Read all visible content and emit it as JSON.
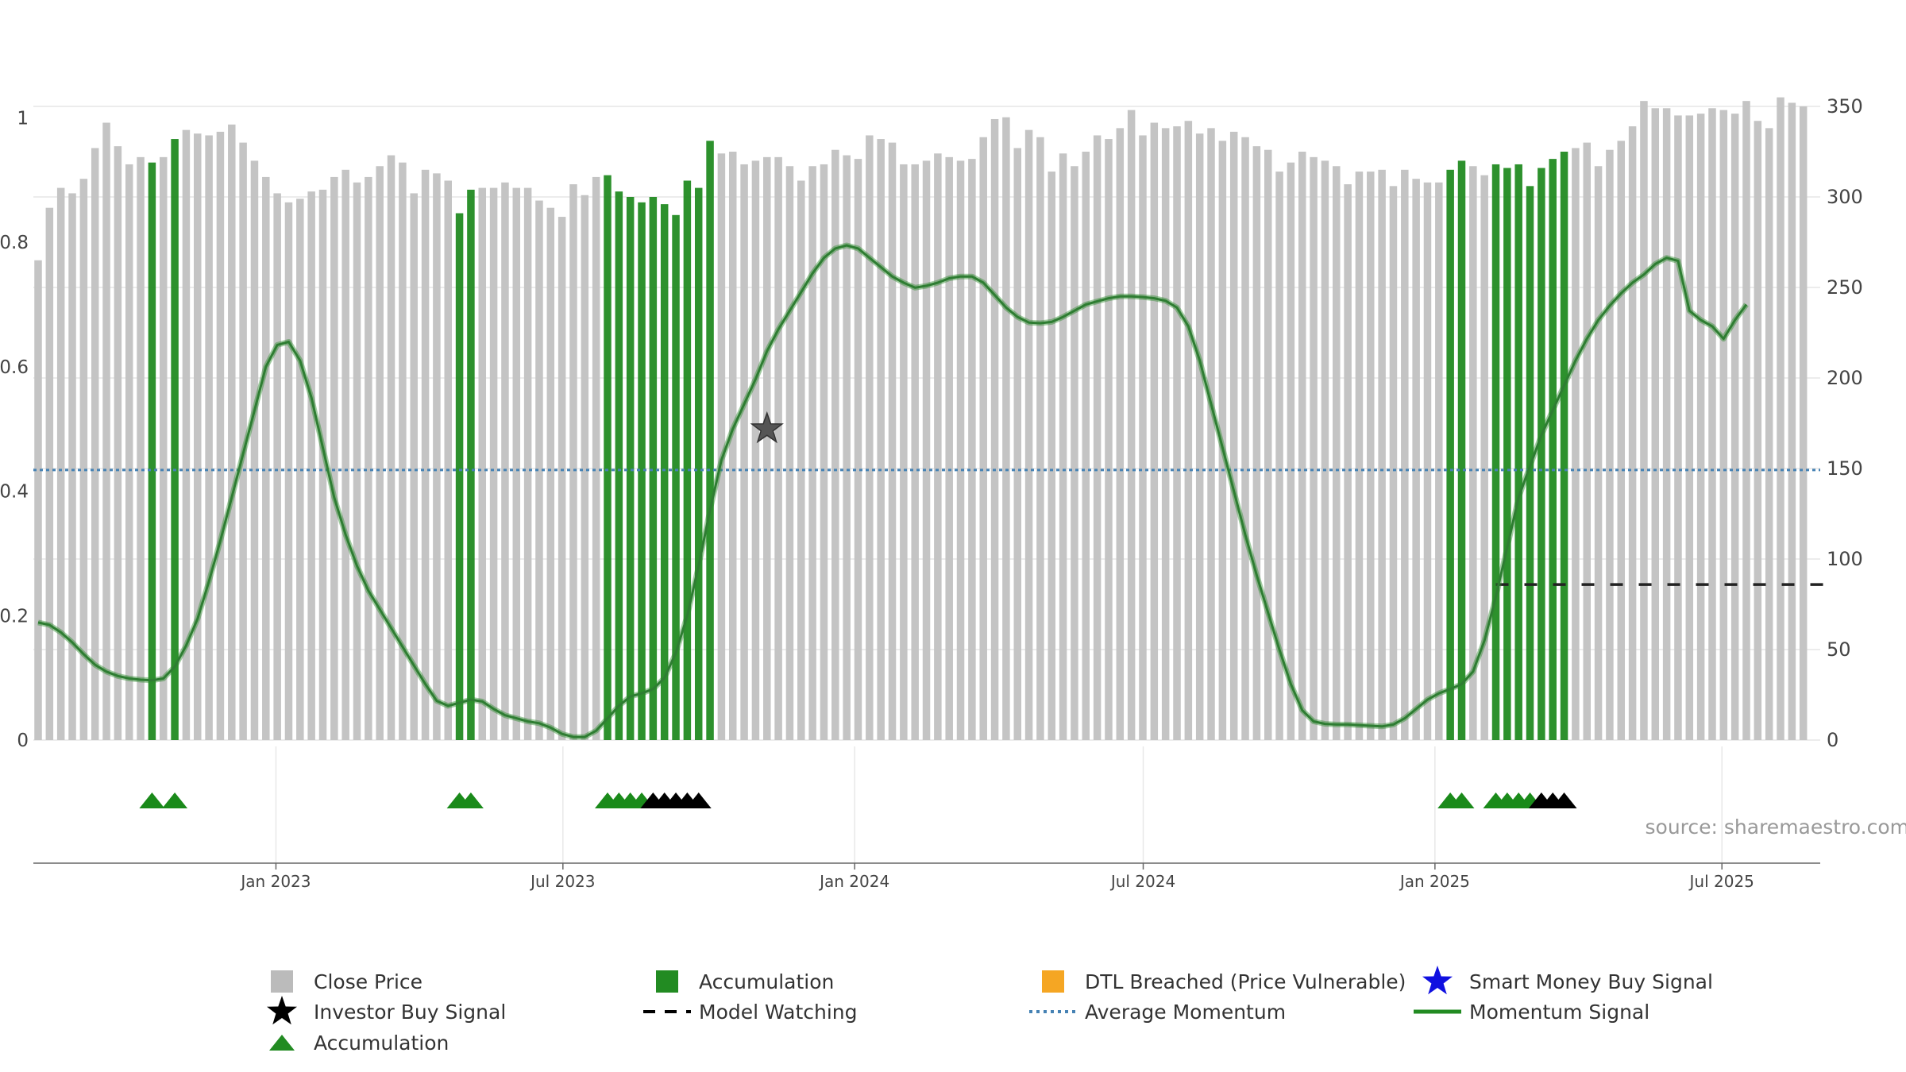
{
  "chart_data": {
    "type": "bar",
    "title": "",
    "source": "source: sharemaestro.com",
    "x_range": [
      "2022-08-01",
      "2025-09-01"
    ],
    "x_ticks": [
      {
        "date": "2023-01-01",
        "label": "Jan 2023"
      },
      {
        "date": "2023-07-01",
        "label": "Jul 2023"
      },
      {
        "date": "2024-01-01",
        "label": "Jan 2024"
      },
      {
        "date": "2024-07-01",
        "label": "Jul 2024"
      },
      {
        "date": "2025-01-01",
        "label": "Jan 2025"
      },
      {
        "date": "2025-07-01",
        "label": "Jul 2025"
      }
    ],
    "left_axis": {
      "ylim": [
        0,
        1.1
      ],
      "ticks": [
        {
          "value": 0,
          "label": "0"
        },
        {
          "value": 0.2,
          "label": "0.2"
        },
        {
          "value": 0.4,
          "label": "0.4"
        },
        {
          "value": 0.6,
          "label": "0.6"
        },
        {
          "value": 0.8,
          "label": "0.8"
        },
        {
          "value": 1.0,
          "label": "1"
        }
      ]
    },
    "right_axis": {
      "ylim": [
        0,
        350
      ],
      "ticks": [
        {
          "value": 0,
          "label": "0"
        },
        {
          "value": 50,
          "label": "50"
        },
        {
          "value": 100,
          "label": "100"
        },
        {
          "value": 150,
          "label": "150"
        },
        {
          "value": 200,
          "label": "200"
        },
        {
          "value": 250,
          "label": "250"
        },
        {
          "value": 300,
          "label": "300"
        },
        {
          "value": 350,
          "label": "350"
        }
      ]
    },
    "close_price": [
      265,
      294,
      305,
      302,
      310,
      327,
      341,
      328,
      318,
      322,
      319,
      322,
      332,
      337,
      335,
      334,
      336,
      340,
      330,
      320,
      311,
      302,
      297,
      299,
      303,
      304,
      311,
      315,
      308,
      311,
      317,
      323,
      319,
      302,
      315,
      313,
      309,
      291,
      304,
      305,
      305,
      308,
      305,
      305,
      298,
      294,
      289,
      307,
      301,
      311,
      312,
      303,
      300,
      297,
      300,
      296,
      290,
      309,
      305,
      331,
      324,
      325,
      318,
      320,
      322,
      322,
      317,
      309,
      317,
      318,
      326,
      323,
      321,
      334,
      332,
      330,
      318,
      318,
      320,
      324,
      322,
      320,
      321,
      333,
      343,
      344,
      327,
      337,
      333,
      314,
      324,
      317,
      325,
      334,
      332,
      338,
      348,
      334,
      341,
      338,
      339,
      342,
      335,
      338,
      331,
      336,
      333,
      328,
      326,
      314,
      319,
      325,
      322,
      320,
      317,
      307,
      314,
      314,
      315,
      306,
      315,
      310,
      308,
      308,
      315,
      320,
      317,
      312,
      318,
      316,
      318,
      306,
      316,
      321,
      325,
      327,
      330,
      317,
      326,
      331,
      339,
      353,
      349,
      349,
      345,
      345,
      346,
      349,
      348,
      346,
      353,
      342,
      338,
      355,
      352,
      350
    ],
    "accumulation_bars": [
      10,
      12,
      37,
      38,
      50,
      51,
      52,
      53,
      54,
      55,
      56,
      57,
      58,
      59,
      124,
      125,
      128,
      129,
      130,
      131,
      132,
      133,
      134
    ],
    "accumulation_markers": [
      10,
      12,
      37,
      38,
      50,
      51,
      52,
      53,
      124,
      125,
      128,
      129,
      130,
      131
    ],
    "investor_buy_markers": [
      54,
      55,
      56,
      57,
      58,
      132,
      133,
      134
    ],
    "momentum_signal": [
      0.189,
      0.185,
      0.173,
      0.157,
      0.138,
      0.121,
      0.11,
      0.103,
      0.099,
      0.097,
      0.096,
      0.099,
      0.118,
      0.152,
      0.195,
      0.255,
      0.32,
      0.39,
      0.46,
      0.53,
      0.6,
      0.635,
      0.64,
      0.61,
      0.55,
      0.47,
      0.39,
      0.33,
      0.28,
      0.24,
      0.21,
      0.18,
      0.15,
      0.12,
      0.09,
      0.063,
      0.055,
      0.06,
      0.065,
      0.062,
      0.05,
      0.04,
      0.035,
      0.03,
      0.027,
      0.02,
      0.01,
      0.005,
      0.005,
      0.015,
      0.035,
      0.055,
      0.07,
      0.075,
      0.082,
      0.1,
      0.14,
      0.2,
      0.28,
      0.37,
      0.45,
      0.5,
      0.54,
      0.58,
      0.625,
      0.66,
      0.69,
      0.72,
      0.75,
      0.775,
      0.79,
      0.795,
      0.79,
      0.775,
      0.76,
      0.745,
      0.735,
      0.727,
      0.73,
      0.735,
      0.742,
      0.745,
      0.745,
      0.735,
      0.715,
      0.695,
      0.68,
      0.671,
      0.67,
      0.672,
      0.68,
      0.69,
      0.7,
      0.705,
      0.71,
      0.713,
      0.713,
      0.712,
      0.71,
      0.706,
      0.695,
      0.665,
      0.61,
      0.54,
      0.47,
      0.4,
      0.33,
      0.265,
      0.205,
      0.145,
      0.09,
      0.048,
      0.03,
      0.026,
      0.025,
      0.025,
      0.024,
      0.023,
      0.022,
      0.025,
      0.035,
      0.05,
      0.065,
      0.075,
      0.082,
      0.09,
      0.11,
      0.16,
      0.23,
      0.31,
      0.39,
      0.44,
      0.49,
      0.53,
      0.57,
      0.61,
      0.645,
      0.675,
      0.698,
      0.718,
      0.735,
      0.748,
      0.765,
      0.775,
      0.77,
      0.69,
      0.675,
      0.665,
      0.645,
      0.675,
      0.7
    ],
    "average_momentum": 0.434,
    "model_watching": {
      "level": 0.25,
      "from_index": 128,
      "to_index": 157
    },
    "investor_buy_signal_star": {
      "index": 64,
      "value": 0.5
    },
    "legend": [
      {
        "label": "Close Price",
        "symbol": "square",
        "color": "#bbbbbb"
      },
      {
        "label": "Accumulation",
        "symbol": "square",
        "color": "#228b22"
      },
      {
        "label": "DTL Breached (Price Vulnerable)",
        "symbol": "square",
        "color": "#f5a623"
      },
      {
        "label": "Smart Money Buy Signal",
        "symbol": "star",
        "color": "#1010e0"
      },
      {
        "label": "Investor Buy Signal",
        "symbol": "star",
        "color": "#000000"
      },
      {
        "label": "Model Watching",
        "symbol": "dash",
        "color": "#000000"
      },
      {
        "label": "Average Momentum",
        "symbol": "dot",
        "color": "#4682b4"
      },
      {
        "label": "Momentum Signal",
        "symbol": "line",
        "color": "#228b22"
      },
      {
        "label": "Accumulation",
        "symbol": "triangle",
        "color": "#228b22"
      }
    ]
  }
}
